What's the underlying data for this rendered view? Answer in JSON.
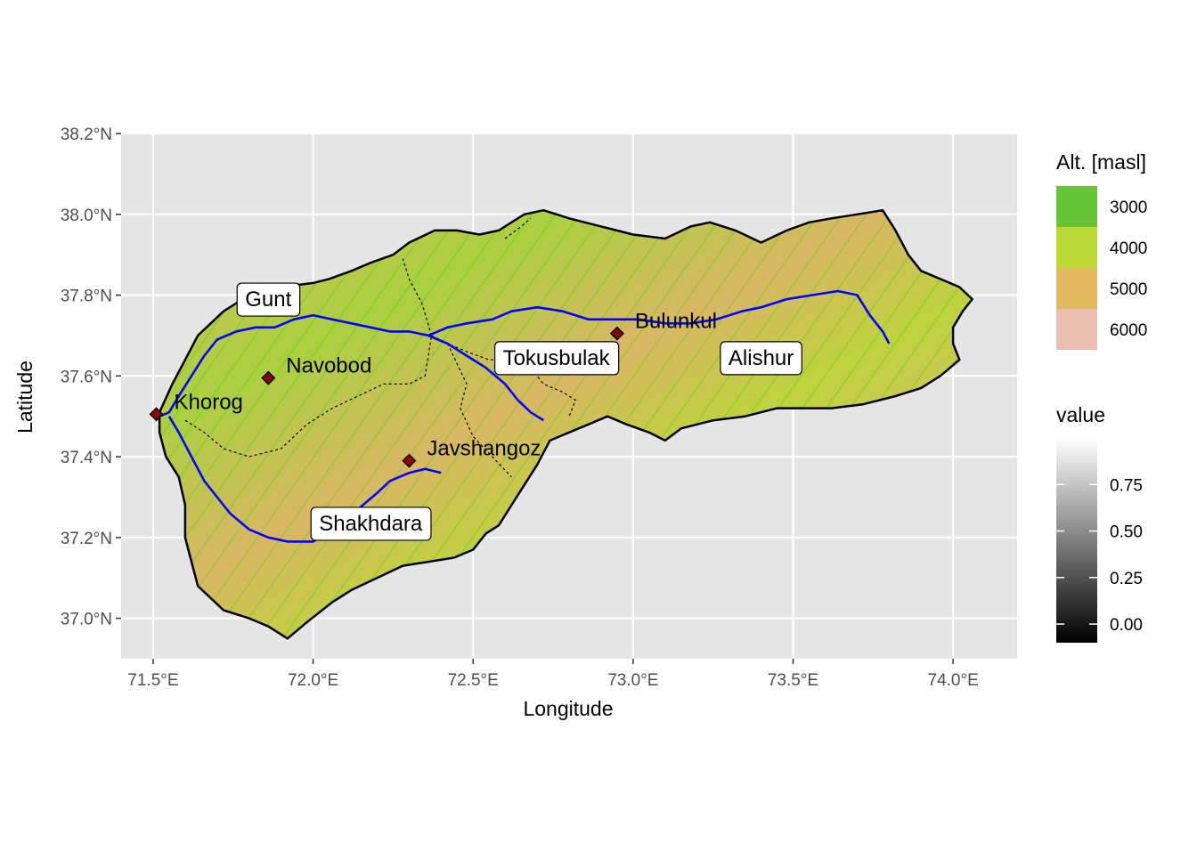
{
  "map": {
    "x_axis": {
      "title": "Longitude",
      "range": [
        71.4,
        74.2
      ],
      "ticks": [
        {
          "value": 71.5,
          "label": "71.5°E"
        },
        {
          "value": 72.0,
          "label": "72.0°E"
        },
        {
          "value": 72.5,
          "label": "72.5°E"
        },
        {
          "value": 73.0,
          "label": "73.0°E"
        },
        {
          "value": 73.5,
          "label": "73.5°E"
        },
        {
          "value": 74.0,
          "label": "74.0°E"
        }
      ]
    },
    "y_axis": {
      "title": "Latitude",
      "range": [
        36.9,
        38.2
      ],
      "ticks": [
        {
          "value": 37.0,
          "label": "37.0°N"
        },
        {
          "value": 37.2,
          "label": "37.2°N"
        },
        {
          "value": 37.4,
          "label": "37.4°N"
        },
        {
          "value": 37.6,
          "label": "37.6°N"
        },
        {
          "value": 37.8,
          "label": "37.8°N"
        },
        {
          "value": 38.0,
          "label": "38.0°N"
        },
        {
          "value": 38.2,
          "label": "38.2°N"
        }
      ]
    },
    "grid": true,
    "basin_outline": [
      [
        71.52,
        37.51
      ],
      [
        71.56,
        37.58
      ],
      [
        71.6,
        37.64
      ],
      [
        71.64,
        37.7
      ],
      [
        71.68,
        37.73
      ],
      [
        71.72,
        37.76
      ],
      [
        71.8,
        37.8
      ],
      [
        71.9,
        37.82
      ],
      [
        72.0,
        37.83
      ],
      [
        72.05,
        37.84
      ],
      [
        72.12,
        37.86
      ],
      [
        72.18,
        37.88
      ],
      [
        72.25,
        37.9
      ],
      [
        72.3,
        37.93
      ],
      [
        72.38,
        37.96
      ],
      [
        72.45,
        37.96
      ],
      [
        72.52,
        37.95
      ],
      [
        72.58,
        37.96
      ],
      [
        72.62,
        37.98
      ],
      [
        72.66,
        38.0
      ],
      [
        72.72,
        38.01
      ],
      [
        72.8,
        37.99
      ],
      [
        72.9,
        37.97
      ],
      [
        73.0,
        37.95
      ],
      [
        73.1,
        37.94
      ],
      [
        73.18,
        37.97
      ],
      [
        73.24,
        37.98
      ],
      [
        73.32,
        37.96
      ],
      [
        73.4,
        37.93
      ],
      [
        73.48,
        37.96
      ],
      [
        73.55,
        37.98
      ],
      [
        73.62,
        37.99
      ],
      [
        73.7,
        38.0
      ],
      [
        73.78,
        38.01
      ],
      [
        73.82,
        37.96
      ],
      [
        73.86,
        37.9
      ],
      [
        73.9,
        37.86
      ],
      [
        73.96,
        37.84
      ],
      [
        74.02,
        37.82
      ],
      [
        74.06,
        37.79
      ],
      [
        74.03,
        37.76
      ],
      [
        74.0,
        37.72
      ],
      [
        74.0,
        37.68
      ],
      [
        74.02,
        37.64
      ],
      [
        73.96,
        37.6
      ],
      [
        73.9,
        37.57
      ],
      [
        73.82,
        37.55
      ],
      [
        73.72,
        37.53
      ],
      [
        73.62,
        37.52
      ],
      [
        73.55,
        37.52
      ],
      [
        73.45,
        37.52
      ],
      [
        73.35,
        37.5
      ],
      [
        73.25,
        37.49
      ],
      [
        73.15,
        37.47
      ],
      [
        73.1,
        37.44
      ],
      [
        73.05,
        37.46
      ],
      [
        72.98,
        37.48
      ],
      [
        72.92,
        37.5
      ],
      [
        72.86,
        37.48
      ],
      [
        72.8,
        37.46
      ],
      [
        72.74,
        37.44
      ],
      [
        72.7,
        37.38
      ],
      [
        72.66,
        37.33
      ],
      [
        72.62,
        37.28
      ],
      [
        72.58,
        37.23
      ],
      [
        72.54,
        37.21
      ],
      [
        72.5,
        37.17
      ],
      [
        72.44,
        37.15
      ],
      [
        72.36,
        37.14
      ],
      [
        72.28,
        37.13
      ],
      [
        72.2,
        37.1
      ],
      [
        72.12,
        37.07
      ],
      [
        72.06,
        37.04
      ],
      [
        71.98,
        36.99
      ],
      [
        71.92,
        36.95
      ],
      [
        71.86,
        36.98
      ],
      [
        71.8,
        37.0
      ],
      [
        71.72,
        37.02
      ],
      [
        71.64,
        37.08
      ],
      [
        71.62,
        37.14
      ],
      [
        71.6,
        37.2
      ],
      [
        71.6,
        37.28
      ],
      [
        71.58,
        37.35
      ],
      [
        71.54,
        37.4
      ],
      [
        71.52,
        37.46
      ],
      [
        71.52,
        37.51
      ]
    ],
    "sub_boundaries": [
      [
        [
          71.6,
          37.49
        ],
        [
          71.66,
          37.46
        ],
        [
          71.72,
          37.42
        ],
        [
          71.8,
          37.4
        ],
        [
          71.9,
          37.42
        ],
        [
          71.98,
          37.48
        ],
        [
          72.06,
          37.52
        ],
        [
          72.14,
          37.55
        ],
        [
          72.22,
          37.58
        ],
        [
          72.3,
          37.58
        ],
        [
          72.35,
          37.6
        ],
        [
          72.37,
          37.7
        ]
      ],
      [
        [
          72.37,
          37.7
        ],
        [
          72.34,
          37.78
        ],
        [
          72.3,
          37.84
        ],
        [
          72.28,
          37.89
        ]
      ],
      [
        [
          72.37,
          37.7
        ],
        [
          72.42,
          37.68
        ],
        [
          72.48,
          37.66
        ],
        [
          72.55,
          37.64
        ],
        [
          72.62,
          37.64
        ],
        [
          72.68,
          37.62
        ],
        [
          72.72,
          37.58
        ],
        [
          72.78,
          37.56
        ],
        [
          72.82,
          37.54
        ],
        [
          72.8,
          37.5
        ]
      ],
      [
        [
          72.42,
          37.68
        ],
        [
          72.48,
          37.58
        ],
        [
          72.46,
          37.52
        ],
        [
          72.5,
          37.45
        ],
        [
          72.56,
          37.4
        ],
        [
          72.62,
          37.35
        ]
      ],
      [
        [
          72.6,
          37.94
        ],
        [
          72.65,
          37.97
        ],
        [
          72.68,
          37.99
        ]
      ]
    ],
    "rivers": [
      [
        [
          71.52,
          37.5
        ],
        [
          71.55,
          37.51
        ],
        [
          71.58,
          37.55
        ],
        [
          71.62,
          37.6
        ],
        [
          71.66,
          37.65
        ],
        [
          71.7,
          37.69
        ],
        [
          71.76,
          37.71
        ],
        [
          71.82,
          37.72
        ],
        [
          71.88,
          37.72
        ],
        [
          71.94,
          37.74
        ],
        [
          72.0,
          37.75
        ],
        [
          72.06,
          37.74
        ],
        [
          72.12,
          37.73
        ],
        [
          72.18,
          37.72
        ],
        [
          72.24,
          37.71
        ],
        [
          72.3,
          37.71
        ],
        [
          72.36,
          37.7
        ],
        [
          72.42,
          37.72
        ],
        [
          72.48,
          37.73
        ],
        [
          72.56,
          37.74
        ],
        [
          72.62,
          37.76
        ],
        [
          72.7,
          37.77
        ],
        [
          72.78,
          37.76
        ],
        [
          72.86,
          37.74
        ],
        [
          72.94,
          37.74
        ],
        [
          73.02,
          37.74
        ],
        [
          73.1,
          37.73
        ],
        [
          73.18,
          37.73
        ],
        [
          73.26,
          37.74
        ],
        [
          73.34,
          37.76
        ],
        [
          73.4,
          37.77
        ],
        [
          73.48,
          37.79
        ],
        [
          73.56,
          37.8
        ],
        [
          73.64,
          37.81
        ],
        [
          73.7,
          37.8
        ],
        [
          73.74,
          37.75
        ],
        [
          73.78,
          37.71
        ],
        [
          73.8,
          37.68
        ]
      ],
      [
        [
          72.36,
          37.7
        ],
        [
          72.42,
          37.68
        ],
        [
          72.48,
          37.65
        ],
        [
          72.54,
          37.62
        ],
        [
          72.6,
          37.58
        ],
        [
          72.64,
          37.54
        ],
        [
          72.68,
          37.51
        ],
        [
          72.72,
          37.49
        ]
      ],
      [
        [
          71.55,
          37.5
        ],
        [
          71.58,
          37.46
        ],
        [
          71.62,
          37.4
        ],
        [
          71.66,
          37.34
        ],
        [
          71.7,
          37.3
        ],
        [
          71.74,
          37.26
        ],
        [
          71.8,
          37.22
        ],
        [
          71.86,
          37.2
        ],
        [
          71.92,
          37.19
        ],
        [
          72.0,
          37.19
        ],
        [
          72.04,
          37.21
        ],
        [
          72.08,
          37.24
        ],
        [
          72.14,
          37.27
        ],
        [
          72.2,
          37.31
        ],
        [
          72.24,
          37.34
        ],
        [
          72.3,
          37.36
        ],
        [
          72.35,
          37.37
        ],
        [
          72.4,
          37.36
        ]
      ]
    ],
    "places": [
      {
        "name": "Khorog",
        "lon": 71.51,
        "lat": 37.505
      },
      {
        "name": "Navobod",
        "lon": 71.86,
        "lat": 37.595
      },
      {
        "name": "Bulunkul",
        "lon": 72.95,
        "lat": 37.705
      },
      {
        "name": "Javshangoz",
        "lon": 72.3,
        "lat": 37.39
      }
    ],
    "box_labels": [
      {
        "name": "Gunt",
        "lon": 71.86,
        "lat": 37.79
      },
      {
        "name": "Tokusbulak",
        "lon": 72.76,
        "lat": 37.645
      },
      {
        "name": "Alishur",
        "lon": 73.4,
        "lat": 37.645
      },
      {
        "name": "Shakhdara",
        "lon": 72.18,
        "lat": 37.235
      }
    ],
    "colors": {
      "panel_bg": "#e5e5e5",
      "grid": "#ffffff",
      "river": "#0000ff",
      "outline": "#000000",
      "place_fill": "#8b0000"
    }
  },
  "legend": {
    "altitude": {
      "title": "Alt. [masl]",
      "items": [
        {
          "label": "3000",
          "color": "#66c437"
        },
        {
          "label": "4000",
          "color": "#bcd937"
        },
        {
          "label": "5000",
          "color": "#e2b95f"
        },
        {
          "label": "6000",
          "color": "#e8bfb0"
        }
      ]
    },
    "value": {
      "title": "value",
      "range": [
        -0.1,
        1.0
      ],
      "breaks": [
        {
          "value": 0.75,
          "label": "0.75"
        },
        {
          "value": 0.5,
          "label": "0.50"
        },
        {
          "value": 0.25,
          "label": "0.25"
        },
        {
          "value": 0.0,
          "label": "0.00"
        }
      ]
    }
  }
}
